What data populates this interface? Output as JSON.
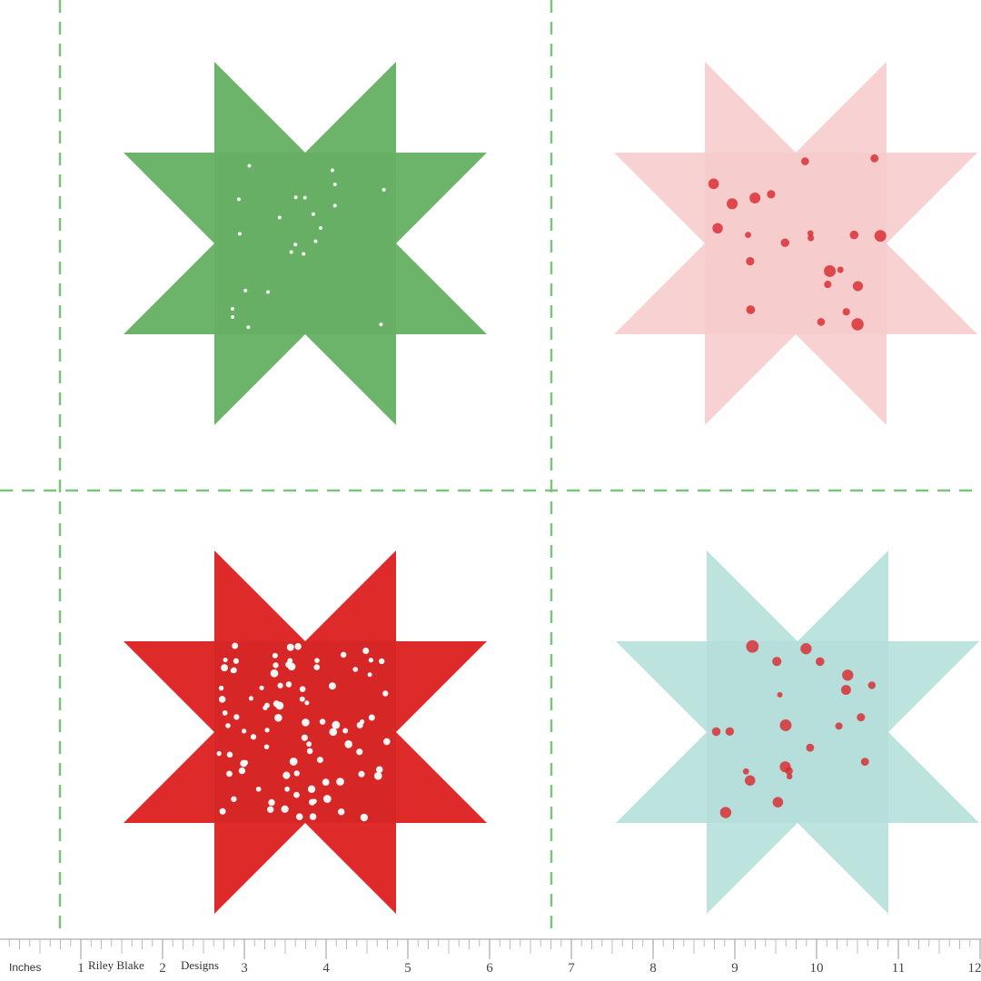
{
  "colors": {
    "guide": "#7cc47c",
    "star_green": "#6db46b",
    "star_pink": "#f8d2d2",
    "star_red": "#de2a29",
    "star_aqua": "#bde3df",
    "ruler": "#bbbbbb"
  },
  "stars": [
    {
      "name": "green-star",
      "color_key": "star_green",
      "accent": "#5aa65a",
      "motif": "#ffffff"
    },
    {
      "name": "pink-star",
      "color_key": "star_pink",
      "accent": "#f3c2c4",
      "motif": "#d8262c"
    },
    {
      "name": "red-star",
      "color_key": "star_red",
      "accent": "#c91f22",
      "motif": "#ffffff"
    },
    {
      "name": "aqua-star",
      "color_key": "star_aqua",
      "accent": "#a9d8d3",
      "motif": "#d8262c"
    }
  ],
  "ruler": {
    "unit_label": "Inches",
    "brand_1": "Riley Blake",
    "brand_2": "Designs",
    "inches": [
      "1",
      "2",
      "3",
      "4",
      "5",
      "6",
      "7",
      "8",
      "9",
      "10",
      "11",
      "12"
    ]
  }
}
